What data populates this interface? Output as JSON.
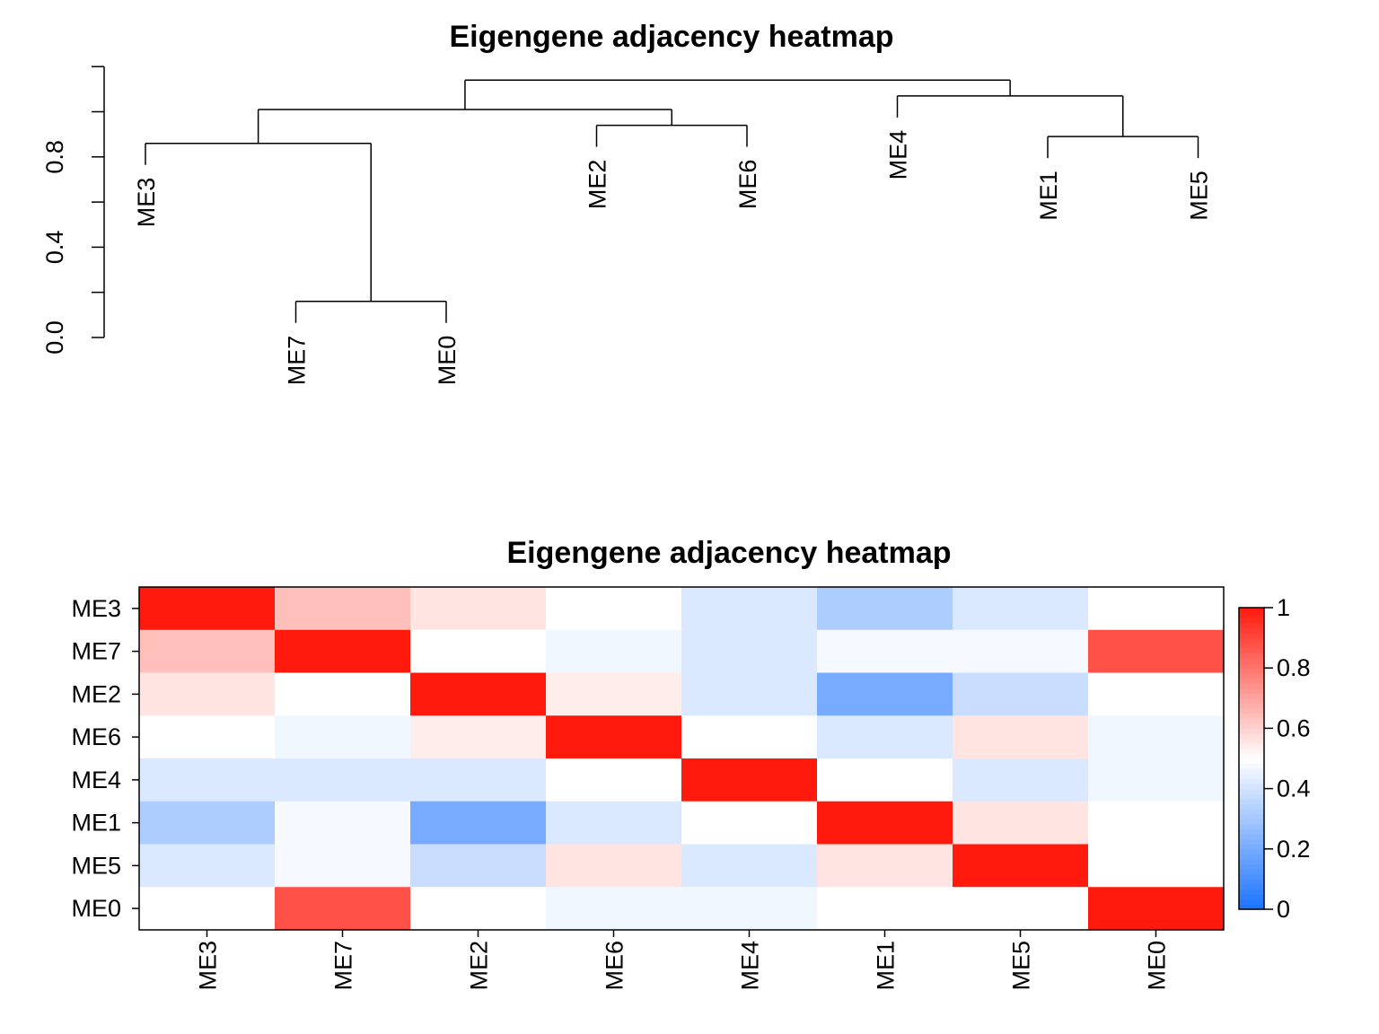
{
  "chart_data": [
    {
      "type": "dendrogram",
      "title": "Eigengene adjacency heatmap",
      "ylim": [
        0,
        1.2
      ],
      "y_ticks": [
        0.0,
        0.4,
        0.8
      ],
      "y_tick_labels": [
        "0.0",
        "0.4",
        "0.8"
      ],
      "leaf_order": [
        "ME3",
        "ME7",
        "ME0",
        "ME2",
        "ME6",
        "ME4",
        "ME1",
        "ME5"
      ],
      "merges": [
        {
          "a": "ME7",
          "b": "ME0",
          "height": 0.16
        },
        {
          "a": "ME1",
          "b": "ME5",
          "height": 0.89
        },
        {
          "a": "ME2",
          "b": "ME6",
          "height": 0.94
        },
        {
          "a": "ME3",
          "b": [
            "ME7",
            "ME0"
          ],
          "height": 0.86
        },
        {
          "a": "ME4",
          "b": [
            "ME1",
            "ME5"
          ],
          "height": 1.07
        },
        {
          "a": [
            "ME3",
            "ME7",
            "ME0"
          ],
          "b": [
            "ME2",
            "ME6"
          ],
          "height": 1.01
        },
        {
          "a": [
            "ME3",
            "ME7",
            "ME0",
            "ME2",
            "ME6"
          ],
          "b": [
            "ME4",
            "ME1",
            "ME5"
          ],
          "height": 1.14
        }
      ]
    },
    {
      "type": "heatmap",
      "title": "Eigengene adjacency heatmap",
      "rows": [
        "ME3",
        "ME7",
        "ME2",
        "ME6",
        "ME4",
        "ME1",
        "ME5",
        "ME0"
      ],
      "cols": [
        "ME3",
        "ME7",
        "ME2",
        "ME6",
        "ME4",
        "ME1",
        "ME5",
        "ME0"
      ],
      "values": [
        [
          1.0,
          0.64,
          0.56,
          0.5,
          0.42,
          0.32,
          0.42,
          0.5
        ],
        [
          0.64,
          1.0,
          0.5,
          0.47,
          0.42,
          0.48,
          0.48,
          0.88
        ],
        [
          0.56,
          0.5,
          1.0,
          0.54,
          0.42,
          0.2,
          0.38,
          0.5
        ],
        [
          0.5,
          0.47,
          0.54,
          1.0,
          0.5,
          0.42,
          0.56,
          0.47
        ],
        [
          0.42,
          0.42,
          0.42,
          0.5,
          1.0,
          0.5,
          0.42,
          0.47
        ],
        [
          0.32,
          0.48,
          0.2,
          0.42,
          0.5,
          1.0,
          0.56,
          0.5
        ],
        [
          0.42,
          0.48,
          0.38,
          0.56,
          0.42,
          0.56,
          1.0,
          0.5
        ],
        [
          0.5,
          0.88,
          0.5,
          0.47,
          0.47,
          0.5,
          0.5,
          1.0
        ]
      ],
      "zlim": [
        0,
        1
      ],
      "colorbar_ticks": [
        0,
        0.2,
        0.4,
        0.6,
        0.8,
        1
      ],
      "colorbar_tick_labels": [
        "0",
        "0.2",
        "0.4",
        "0.6",
        "0.8",
        "1"
      ],
      "colors": {
        "low": "#1a73ff",
        "mid": "#ffffff",
        "high": "#ff1a0d"
      }
    }
  ]
}
